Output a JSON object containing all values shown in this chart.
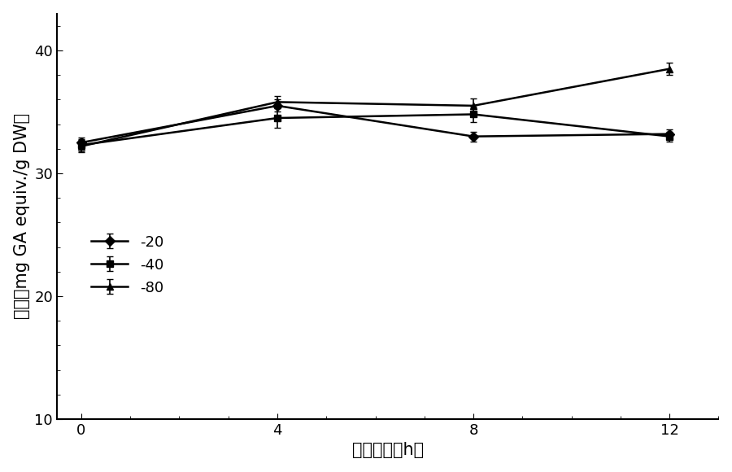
{
  "x": [
    0,
    4,
    8,
    12
  ],
  "series": [
    {
      "label": "-20",
      "y": [
        32.5,
        35.5,
        33.0,
        33.2
      ],
      "yerr": [
        0.4,
        0.5,
        0.4,
        0.4
      ],
      "marker": "D",
      "linestyle": "-"
    },
    {
      "label": "-40",
      "y": [
        32.3,
        34.5,
        34.8,
        33.0
      ],
      "yerr": [
        0.5,
        0.8,
        0.6,
        0.4
      ],
      "marker": "s",
      "linestyle": "-"
    },
    {
      "label": "-80",
      "y": [
        32.2,
        35.8,
        35.5,
        38.5
      ],
      "yerr": [
        0.5,
        0.5,
        0.6,
        0.5
      ],
      "marker": "^",
      "linestyle": "-"
    }
  ],
  "xlabel": "冻存时间（h）",
  "ylabel_cn": "多酚",
  "ylabel_en": "（mg GA equiv./g DW）",
  "ylim": [
    10,
    43
  ],
  "xlim": [
    -0.5,
    13
  ],
  "yticks": [
    10,
    20,
    30,
    40
  ],
  "xticks": [
    0,
    4,
    8,
    12
  ],
  "color": "#000000",
  "linewidth": 1.8,
  "markersize": 6,
  "capsize": 3,
  "fontsize_label": 15,
  "fontsize_tick": 13,
  "fontsize_legend": 13
}
